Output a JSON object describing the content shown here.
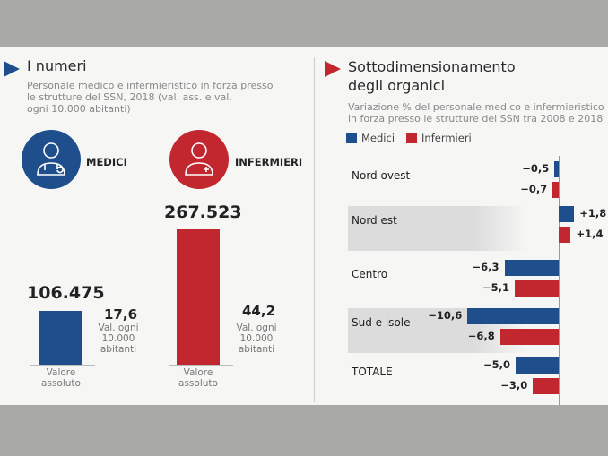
{
  "left": {
    "title": "I numeri",
    "subtitle": [
      "Personale medico e infermieristico in forza presso",
      "le strutture del SSN, 2018 (val. ass. e val.",
      "ogni 10.000 abitanti)"
    ],
    "medici": {
      "label": "MEDICI",
      "abs_value": "106.475",
      "per_capita": "17,6",
      "per_capita_label": [
        "Val. ogni",
        "10.000",
        "abitanti"
      ],
      "abs_label": [
        "Valore",
        "assoluto"
      ]
    },
    "infermieri": {
      "label": "INFERMIERI",
      "abs_value": "267.523",
      "per_capita": "44,2",
      "per_capita_label": [
        "Val. ogni",
        "10.000",
        "abitanti"
      ],
      "abs_label": [
        "Valore",
        "assoluto"
      ]
    }
  },
  "colors": {
    "medici": "#1f4e8c",
    "infermieri": "#c2262f"
  },
  "chart_data": {
    "type": "bar",
    "orientation": "horizontal",
    "title": "Sottodimensionamento degli organici",
    "subtitle": [
      "Variazione % del personale medico e infermieristico",
      "in forza presso le strutture del SSN tra 2008 e 2018"
    ],
    "categories": [
      "Nord ovest",
      "Nord est",
      "Centro",
      "Sud e isole",
      "TOTALE"
    ],
    "series": [
      {
        "name": "Medici",
        "values": [
          -0.5,
          1.8,
          -6.3,
          -10.6,
          -5.0
        ],
        "labels": [
          "−0,5",
          "+1,8",
          "−6,3",
          "−10,6",
          "−5,0"
        ]
      },
      {
        "name": "Infermieri",
        "values": [
          -0.7,
          1.4,
          -5.1,
          -6.8,
          -3.0
        ],
        "labels": [
          "−0,7",
          "+1,4",
          "−5,1",
          "−6,8",
          "−3,0"
        ]
      }
    ],
    "title_lines": [
      "Sottodimensionamento",
      "degli organici"
    ]
  }
}
